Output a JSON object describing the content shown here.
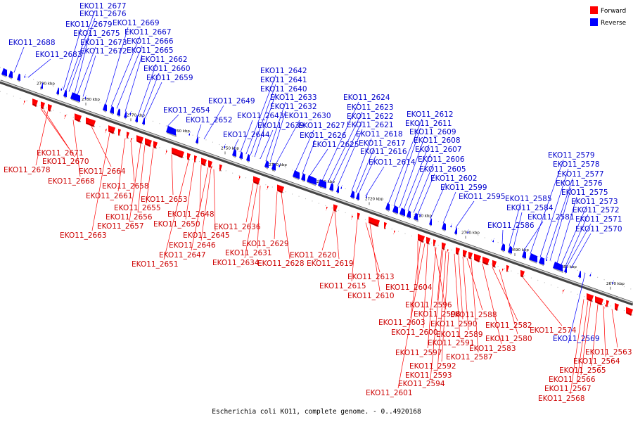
{
  "caption": "Escherichia coli KO11, complete genome. - 0..4920168",
  "legend": {
    "forward": {
      "label": "Forward",
      "color": "#ff0000"
    },
    "reverse": {
      "label": "Reverse",
      "color": "#0000ff"
    }
  },
  "ticks": [
    "2790 kbp",
    "2780 kbp",
    "2770 kbp",
    "2760 kbp",
    "2750 kbp",
    "2740 kbp",
    "2730 kbp",
    "2720 kbp",
    "2710 kbp",
    "2700 kbp",
    "2690 kbp",
    "2680 kbp",
    "2670 kbp"
  ],
  "genes": [
    {
      "name": "EKO11_2688",
      "strand": "reverse"
    },
    {
      "name": "EKO11_2683",
      "strand": "reverse"
    },
    {
      "name": "EKO11_2679",
      "strand": "reverse"
    },
    {
      "name": "EKO11_2677",
      "strand": "reverse"
    },
    {
      "name": "EKO11_2676",
      "strand": "reverse"
    },
    {
      "name": "EKO11_2675",
      "strand": "reverse"
    },
    {
      "name": "EKO11_2673",
      "strand": "reverse"
    },
    {
      "name": "EKO11_2672",
      "strand": "reverse"
    },
    {
      "name": "EKO11_2669",
      "strand": "reverse"
    },
    {
      "name": "EKO11_2667",
      "strand": "reverse"
    },
    {
      "name": "EKO11_2666",
      "strand": "reverse"
    },
    {
      "name": "EKO11_2665",
      "strand": "reverse"
    },
    {
      "name": "EKO11_2662",
      "strand": "reverse"
    },
    {
      "name": "EKO11_2660",
      "strand": "reverse"
    },
    {
      "name": "EKO11_2659",
      "strand": "reverse"
    },
    {
      "name": "EKO11_2654",
      "strand": "reverse"
    },
    {
      "name": "EKO11_2652",
      "strand": "reverse"
    },
    {
      "name": "EKO11_2649",
      "strand": "reverse"
    },
    {
      "name": "EKO11_2644",
      "strand": "reverse"
    },
    {
      "name": "EKO11_2643",
      "strand": "reverse"
    },
    {
      "name": "EKO11_2642",
      "strand": "reverse"
    },
    {
      "name": "EKO11_2641",
      "strand": "reverse"
    },
    {
      "name": "EKO11_2640",
      "strand": "reverse"
    },
    {
      "name": "EKO11_2639",
      "strand": "reverse"
    },
    {
      "name": "EKO11_2633",
      "strand": "reverse"
    },
    {
      "name": "EKO11_2632",
      "strand": "reverse"
    },
    {
      "name": "EKO11_2630",
      "strand": "reverse"
    },
    {
      "name": "EKO11_2627",
      "strand": "reverse"
    },
    {
      "name": "EKO11_2626",
      "strand": "reverse"
    },
    {
      "name": "EKO11_2625",
      "strand": "reverse"
    },
    {
      "name": "EKO11_2624",
      "strand": "reverse"
    },
    {
      "name": "EKO11_2623",
      "strand": "reverse"
    },
    {
      "name": "EKO11_2622",
      "strand": "reverse"
    },
    {
      "name": "EKO11_2621",
      "strand": "reverse"
    },
    {
      "name": "EKO11_2618",
      "strand": "reverse"
    },
    {
      "name": "EKO11_2617",
      "strand": "reverse"
    },
    {
      "name": "EKO11_2616",
      "strand": "reverse"
    },
    {
      "name": "EKO11_2614",
      "strand": "reverse"
    },
    {
      "name": "EKO11_2612",
      "strand": "reverse"
    },
    {
      "name": "EKO11_2611",
      "strand": "reverse"
    },
    {
      "name": "EKO11_2609",
      "strand": "reverse"
    },
    {
      "name": "EKO11_2608",
      "strand": "reverse"
    },
    {
      "name": "EKO11_2607",
      "strand": "reverse"
    },
    {
      "name": "EKO11_2606",
      "strand": "reverse"
    },
    {
      "name": "EKO11_2605",
      "strand": "reverse"
    },
    {
      "name": "EKO11_2602",
      "strand": "reverse"
    },
    {
      "name": "EKO11_2599",
      "strand": "reverse"
    },
    {
      "name": "EKO11_2595",
      "strand": "reverse"
    },
    {
      "name": "EKO11_2586",
      "strand": "reverse"
    },
    {
      "name": "EKO11_2585",
      "strand": "reverse"
    },
    {
      "name": "EKO11_2584",
      "strand": "reverse"
    },
    {
      "name": "EKO11_2581",
      "strand": "reverse"
    },
    {
      "name": "EKO11_2579",
      "strand": "reverse"
    },
    {
      "name": "EKO11_2578",
      "strand": "reverse"
    },
    {
      "name": "EKO11_2577",
      "strand": "reverse"
    },
    {
      "name": "EKO11_2576",
      "strand": "reverse"
    },
    {
      "name": "EKO11_2575",
      "strand": "reverse"
    },
    {
      "name": "EKO11_2573",
      "strand": "reverse"
    },
    {
      "name": "EKO11_2572",
      "strand": "reverse"
    },
    {
      "name": "EKO11_2571",
      "strand": "reverse"
    },
    {
      "name": "EKO11_2570",
      "strand": "reverse"
    },
    {
      "name": "EKO11_2569",
      "strand": "reverse"
    },
    {
      "name": "EKO11_2678",
      "strand": "forward"
    },
    {
      "name": "EKO11_2671",
      "strand": "forward"
    },
    {
      "name": "EKO11_2670",
      "strand": "forward"
    },
    {
      "name": "EKO11_2668",
      "strand": "forward"
    },
    {
      "name": "EKO11_2664",
      "strand": "forward"
    },
    {
      "name": "EKO11_2663",
      "strand": "forward"
    },
    {
      "name": "EKO11_2661",
      "strand": "forward"
    },
    {
      "name": "EKO11_2658",
      "strand": "forward"
    },
    {
      "name": "EKO11_2657",
      "strand": "forward"
    },
    {
      "name": "EKO11_2656",
      "strand": "forward"
    },
    {
      "name": "EKO11_2655",
      "strand": "forward"
    },
    {
      "name": "EKO11_2653",
      "strand": "forward"
    },
    {
      "name": "EKO11_2651",
      "strand": "forward"
    },
    {
      "name": "EKO11_2650",
      "strand": "forward"
    },
    {
      "name": "EKO11_2648",
      "strand": "forward"
    },
    {
      "name": "EKO11_2647",
      "strand": "forward"
    },
    {
      "name": "EKO11_2646",
      "strand": "forward"
    },
    {
      "name": "EKO11_2645",
      "strand": "forward"
    },
    {
      "name": "EKO11_2636",
      "strand": "forward"
    },
    {
      "name": "EKO11_2634",
      "strand": "forward"
    },
    {
      "name": "EKO11_2631",
      "strand": "forward"
    },
    {
      "name": "EKO11_2629",
      "strand": "forward"
    },
    {
      "name": "EKO11_2628",
      "strand": "forward"
    },
    {
      "name": "EKO11_2620",
      "strand": "forward"
    },
    {
      "name": "EKO11_2619",
      "strand": "forward"
    },
    {
      "name": "EKO11_2615",
      "strand": "forward"
    },
    {
      "name": "EKO11_2613",
      "strand": "forward"
    },
    {
      "name": "EKO11_2610",
      "strand": "forward"
    },
    {
      "name": "EKO11_2604",
      "strand": "forward"
    },
    {
      "name": "EKO11_2603",
      "strand": "forward"
    },
    {
      "name": "EKO11_2601",
      "strand": "forward"
    },
    {
      "name": "EKO11_2600",
      "strand": "forward"
    },
    {
      "name": "EKO11_2598",
      "strand": "forward"
    },
    {
      "name": "EKO11_2597",
      "strand": "forward"
    },
    {
      "name": "EKO11_2596",
      "strand": "forward"
    },
    {
      "name": "EKO11_2594",
      "strand": "forward"
    },
    {
      "name": "EKO11_2593",
      "strand": "forward"
    },
    {
      "name": "EKO11_2592",
      "strand": "forward"
    },
    {
      "name": "EKO11_2591",
      "strand": "forward"
    },
    {
      "name": "EKO11_2590",
      "strand": "forward"
    },
    {
      "name": "EKO11_2589",
      "strand": "forward"
    },
    {
      "name": "EKO11_2588",
      "strand": "forward"
    },
    {
      "name": "EKO11_2587",
      "strand": "forward"
    },
    {
      "name": "EKO11_2583",
      "strand": "forward"
    },
    {
      "name": "EKO11_2582",
      "strand": "forward"
    },
    {
      "name": "EKO11_2580",
      "strand": "forward"
    },
    {
      "name": "EKO11_2574",
      "strand": "forward"
    },
    {
      "name": "EKO11_2568",
      "strand": "forward"
    },
    {
      "name": "EKO11_2567",
      "strand": "forward"
    },
    {
      "name": "EKO11_2566",
      "strand": "forward"
    },
    {
      "name": "EKO11_2565",
      "strand": "forward"
    },
    {
      "name": "EKO11_2564",
      "strand": "forward"
    },
    {
      "name": "EKO11_2563",
      "strand": "forward"
    }
  ]
}
